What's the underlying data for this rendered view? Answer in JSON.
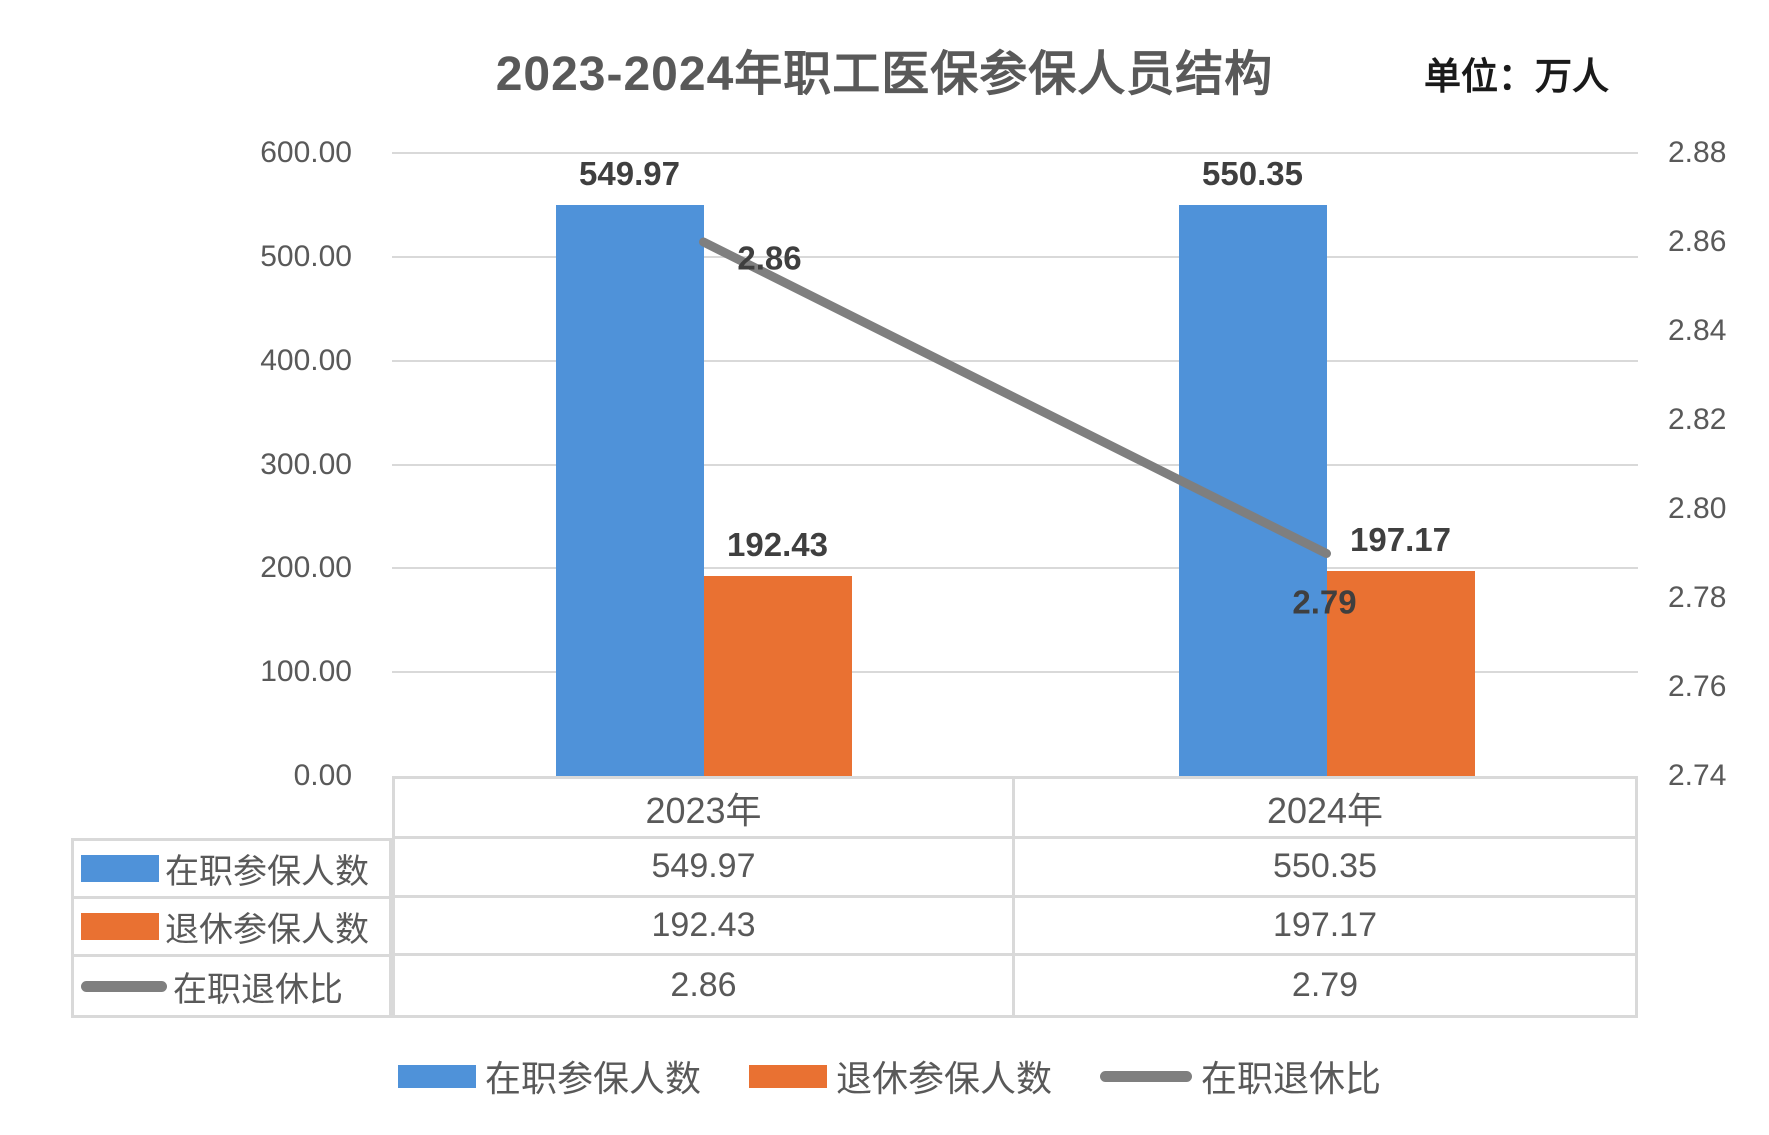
{
  "title": "2023-2024年职工医保参保人员结构",
  "unit_label": "单位：万人",
  "colors": {
    "active_bar": "#4F92D9",
    "retired_bar": "#E97132",
    "ratio_line": "#7F7F7F",
    "gridline": "#D9D9D9",
    "axis_text": "#595959",
    "data_label_text": "#3F3F3F",
    "table_border": "#D9D9D9"
  },
  "chart_data": {
    "type": "bar",
    "subtype": "clustered-bar-with-line-combo",
    "title": "2023-2024年职工医保参保人员结构",
    "unit": "单位：万人",
    "categories": [
      "2023年",
      "2024年"
    ],
    "series": [
      {
        "name": "在职参保人数",
        "type": "bar",
        "axis": "left",
        "color_key": "active_bar",
        "values": [
          549.97,
          550.35
        ],
        "labels": [
          "549.97",
          "550.35"
        ]
      },
      {
        "name": "退休参保人数",
        "type": "bar",
        "axis": "left",
        "color_key": "retired_bar",
        "values": [
          192.43,
          197.17
        ],
        "labels": [
          "192.43",
          "197.17"
        ]
      },
      {
        "name": "在职退休比",
        "type": "line",
        "axis": "right",
        "color_key": "ratio_line",
        "values": [
          2.86,
          2.79
        ],
        "labels": [
          "2.86",
          "2.79"
        ]
      }
    ],
    "left_axis": {
      "min": 0,
      "max": 600,
      "step": 100,
      "tick_labels": [
        "600.00",
        "500.00",
        "400.00",
        "300.00",
        "200.00",
        "100.00",
        "0.00"
      ]
    },
    "right_axis": {
      "min": 2.74,
      "max": 2.88,
      "step": 0.02,
      "tick_labels": [
        "2.88",
        "2.86",
        "2.84",
        "2.82",
        "2.80",
        "2.78",
        "2.76",
        "2.74"
      ]
    },
    "grid": true,
    "legend_position": "bottom",
    "data_table_shown": true
  },
  "legend": {
    "items": [
      {
        "label": "在职参保人数",
        "swatch": "bar",
        "color_key": "active_bar"
      },
      {
        "label": "退休参保人数",
        "swatch": "bar",
        "color_key": "retired_bar"
      },
      {
        "label": "在职退休比",
        "swatch": "line",
        "color_key": "ratio_line"
      }
    ]
  }
}
